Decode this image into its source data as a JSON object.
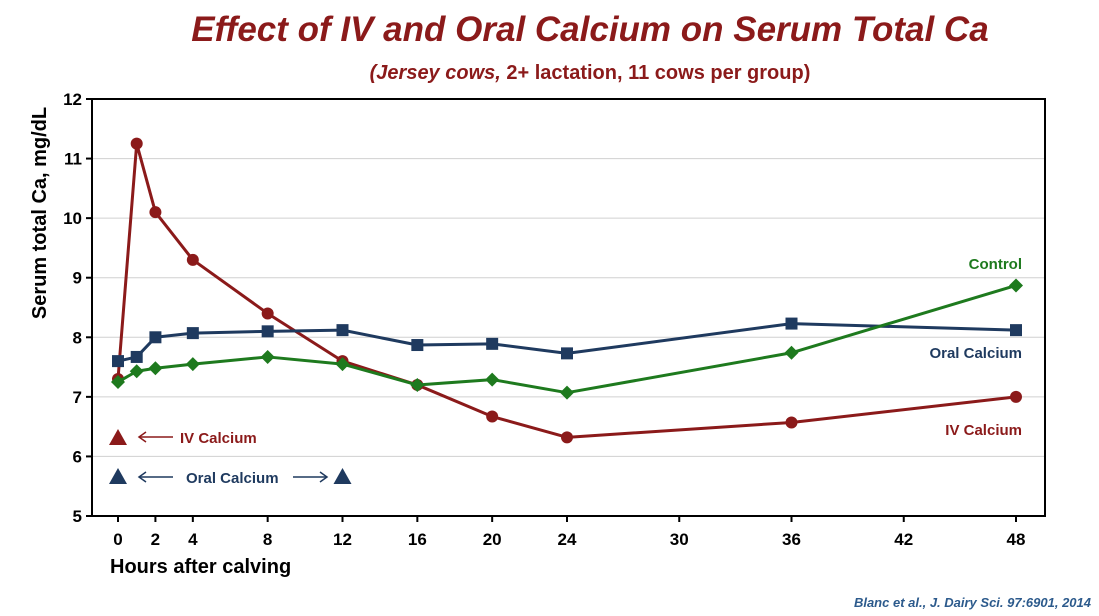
{
  "title": "Effect of IV and Oral Calcium on Serum Total Ca",
  "subtitle": {
    "italic_part": "(Jersey cows,",
    "rest": " 2+ lactation, 11 cows per group)"
  },
  "citation": "Blanc et al., J. Dairy Sci.  97:6901, 2014",
  "chart_data": {
    "type": "line",
    "xlabel": "Hours after  calving",
    "ylabel": "Serum total Ca, mg/dL",
    "xlim": [
      0,
      48
    ],
    "ylim": [
      5,
      12
    ],
    "x_ticks": [
      0,
      2,
      4,
      8,
      12,
      16,
      20,
      24,
      30,
      36,
      42,
      48
    ],
    "y_ticks": [
      5,
      6,
      7,
      8,
      9,
      10,
      11,
      12
    ],
    "grid": "horizontal",
    "series": [
      {
        "name": "IV Calcium",
        "color": "#8b1a1a",
        "marker": "circle",
        "x": [
          0,
          1,
          2,
          4,
          8,
          12,
          16,
          20,
          24,
          36,
          48
        ],
        "y": [
          7.3,
          11.25,
          10.1,
          9.3,
          8.4,
          7.6,
          7.2,
          6.67,
          6.32,
          6.57,
          7.0
        ]
      },
      {
        "name": "Oral Calcium",
        "color": "#1f3a5f",
        "marker": "square",
        "x": [
          0,
          1,
          2,
          4,
          8,
          12,
          16,
          20,
          24,
          36,
          48
        ],
        "y": [
          7.6,
          7.67,
          8.0,
          8.07,
          8.1,
          8.12,
          7.87,
          7.89,
          7.73,
          8.23,
          8.12
        ]
      },
      {
        "name": "Control",
        "color": "#1e7a1e",
        "marker": "diamond",
        "x": [
          0,
          1,
          2,
          4,
          8,
          12,
          16,
          20,
          24,
          36,
          48
        ],
        "y": [
          7.25,
          7.43,
          7.48,
          7.55,
          7.67,
          7.55,
          7.2,
          7.29,
          7.07,
          7.74,
          8.87
        ]
      }
    ],
    "annotations": [
      {
        "text": "IV Calcium",
        "color": "#8b1a1a",
        "treatment_times": [
          0
        ],
        "arrow": "left"
      },
      {
        "text": "Oral Calcium",
        "color": "#1f3a5f",
        "treatment_times": [
          0,
          12
        ],
        "arrow": "both"
      }
    ]
  }
}
